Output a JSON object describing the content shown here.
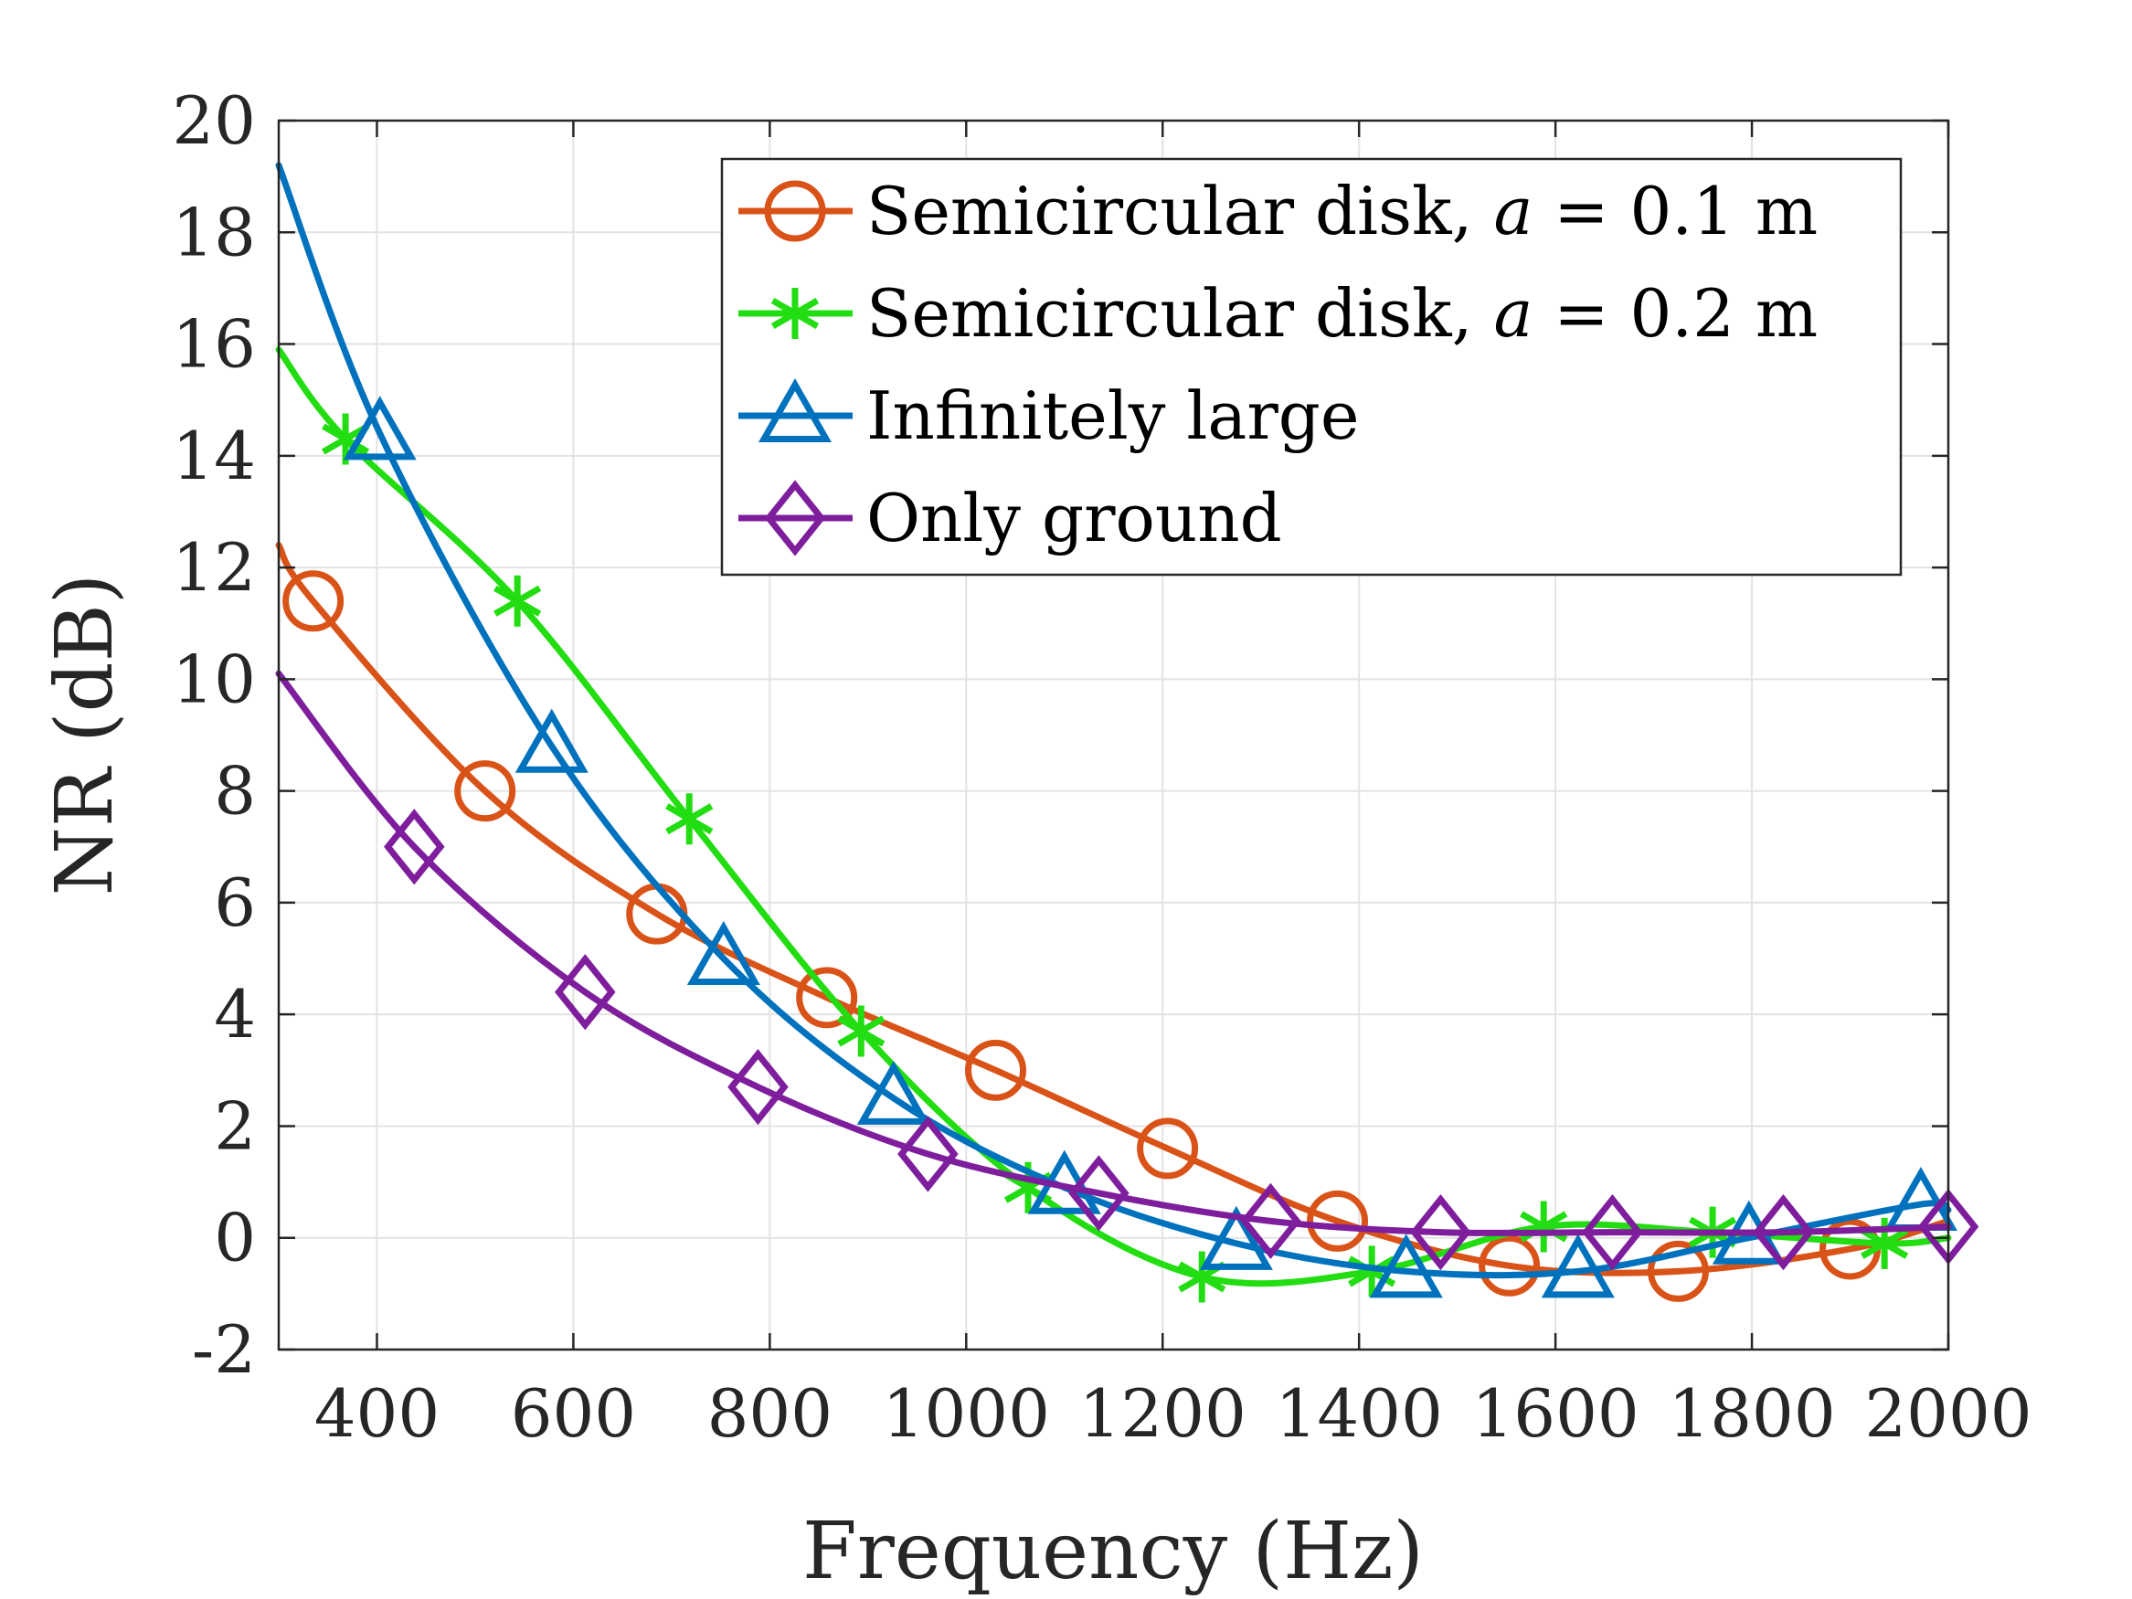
{
  "chart_data": {
    "type": "line",
    "xlabel": "Frequency (Hz)",
    "ylabel": "NR (dB)",
    "xlim": [
      300,
      2000
    ],
    "ylim": [
      -2,
      20
    ],
    "xticks": [
      400,
      600,
      800,
      1000,
      1200,
      1400,
      1600,
      1800,
      2000
    ],
    "yticks": [
      -2,
      0,
      2,
      4,
      6,
      8,
      10,
      12,
      14,
      16,
      18,
      20
    ],
    "grid": true,
    "legend_position": "top-right",
    "series": [
      {
        "name": "Semicircular disk, a = 0.1 m",
        "legend_prefix": "Semicircular disk, ",
        "legend_var": "a",
        "legend_suffix": " = 0.1 m",
        "color": "#D95319",
        "marker": "circle",
        "x": [
          300,
          335,
          510,
          685,
          858,
          1030,
          1205,
          1378,
          1553,
          1725,
          1900,
          2000
        ],
        "y": [
          12.4,
          11.4,
          8.0,
          5.8,
          4.3,
          3.0,
          1.6,
          0.3,
          -0.5,
          -0.6,
          -0.2,
          0.3
        ],
        "marker_x": [
          335,
          510,
          685,
          858,
          1030,
          1205,
          1378,
          1553,
          1725,
          1900
        ]
      },
      {
        "name": "Semicircular disk, a = 0.2 m",
        "legend_prefix": "Semicircular disk, ",
        "legend_var": "a",
        "legend_suffix": " = 0.2 m",
        "color": "#22DD11",
        "marker": "asterisk",
        "x": [
          300,
          368,
          543,
          718,
          893,
          1063,
          1240,
          1413,
          1588,
          1760,
          1935,
          2000
        ],
        "y": [
          15.9,
          14.3,
          11.4,
          7.5,
          3.7,
          0.9,
          -0.7,
          -0.6,
          0.2,
          0.1,
          -0.1,
          0.0
        ],
        "marker_x": [
          368,
          543,
          718,
          893,
          1063,
          1240,
          1413,
          1588,
          1760,
          1935
        ]
      },
      {
        "name": "Infinitely large",
        "legend_prefix": "Infinitely large",
        "legend_var": "",
        "legend_suffix": "",
        "color": "#0072BD",
        "marker": "triangle",
        "x": [
          300,
          403,
          578,
          753,
          926,
          1100,
          1275,
          1448,
          1623,
          1797,
          1972,
          2000
        ],
        "y": [
          19.2,
          14.4,
          8.8,
          5.0,
          2.5,
          0.9,
          -0.1,
          -0.6,
          -0.6,
          0.0,
          0.6,
          0.5
        ],
        "marker_x": [
          403,
          578,
          753,
          926,
          1100,
          1275,
          1448,
          1623,
          1797,
          1972
        ]
      },
      {
        "name": "Only ground",
        "legend_prefix": "Only ground",
        "legend_var": "",
        "legend_suffix": "",
        "color": "#7E1E9C",
        "marker": "diamond",
        "x": [
          300,
          438,
          612,
          788,
          961,
          1135,
          1310,
          1483,
          1658,
          1832,
          2000
        ],
        "y": [
          10.1,
          7.0,
          4.4,
          2.7,
          1.5,
          0.8,
          0.3,
          0.1,
          0.1,
          0.1,
          0.2
        ],
        "marker_x": [
          438,
          612,
          788,
          961,
          1135,
          1310,
          1483,
          1658,
          1832,
          2000
        ]
      }
    ]
  }
}
